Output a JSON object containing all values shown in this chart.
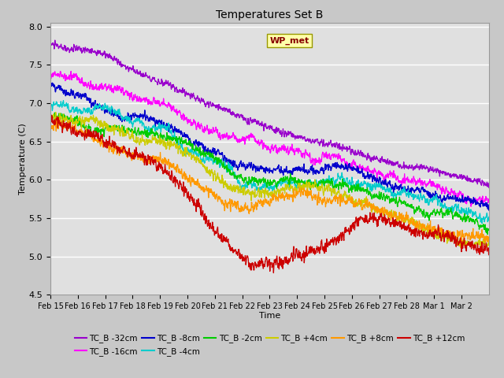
{
  "title": "Temperatures Set B",
  "xlabel": "Time",
  "ylabel": "Temperature (C)",
  "ylim": [
    4.5,
    8.05
  ],
  "xtick_labels": [
    "Feb 15",
    "Feb 16",
    "Feb 17",
    "Feb 18",
    "Feb 19",
    "Feb 20",
    "Feb 21",
    "Feb 22",
    "Feb 23",
    "Feb 24",
    "Feb 25",
    "Feb 26",
    "Feb 27",
    "Feb 28",
    "Mar 1",
    "Mar 2"
  ],
  "series": [
    {
      "label": "TC_B -32cm",
      "color": "#9900cc"
    },
    {
      "label": "TC_B -16cm",
      "color": "#ff00ff"
    },
    {
      "label": "TC_B -8cm",
      "color": "#0000cc"
    },
    {
      "label": "TC_B -4cm",
      "color": "#00cccc"
    },
    {
      "label": "TC_B -2cm",
      "color": "#00cc00"
    },
    {
      "label": "TC_B +4cm",
      "color": "#cccc00"
    },
    {
      "label": "TC_B +8cm",
      "color": "#ff9900"
    },
    {
      "label": "TC_B +12cm",
      "color": "#cc0000"
    }
  ],
  "wp_met_box_color": "#ffffaa",
  "wp_met_text_color": "#880000",
  "fig_facecolor": "#c8c8c8",
  "ax_facecolor": "#e0e0e0",
  "n_days": 16,
  "points_per_day": 144
}
